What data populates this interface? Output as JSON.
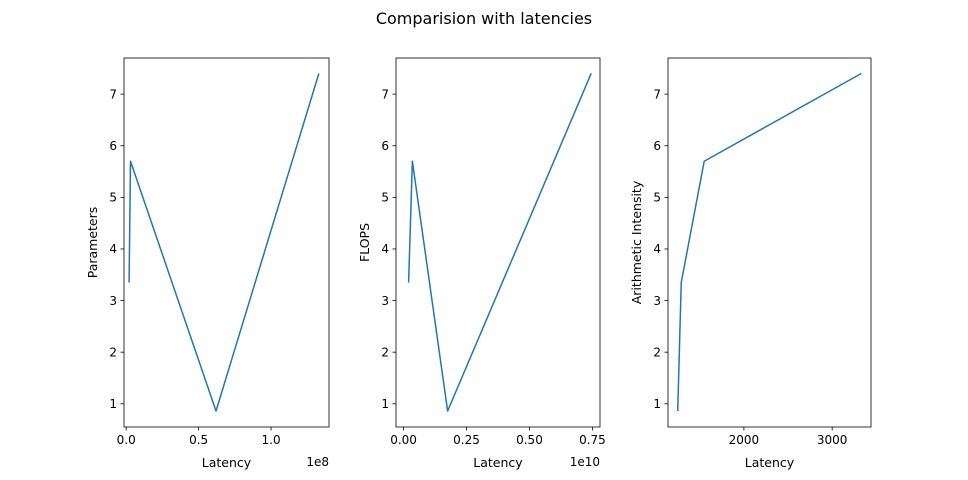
{
  "figure": {
    "title": "Comparision with latencies",
    "background": "#ffffff",
    "line_color": "#1f77b4"
  },
  "chart_data": [
    {
      "type": "line",
      "xlabel": "Latency",
      "ylabel": "Parameters",
      "x_offset_label": "1e8",
      "xlim": [
        -0.015,
        1.4
      ],
      "ylim": [
        0.55,
        7.7
      ],
      "xticks": [
        0.0,
        0.5,
        1.0
      ],
      "xtick_labels": [
        "0.0",
        "0.5",
        "1.0"
      ],
      "yticks": [
        1,
        2,
        3,
        4,
        5,
        6,
        7
      ],
      "ytick_labels": [
        "1",
        "2",
        "3",
        "4",
        "5",
        "6",
        "7"
      ],
      "x_units": "1e8",
      "series": [
        {
          "x": [
            0.02,
            0.03,
            0.62,
            1.33
          ],
          "y": [
            3.35,
            5.7,
            0.86,
            7.4
          ]
        }
      ]
    },
    {
      "type": "line",
      "xlabel": "Latency",
      "ylabel": "FLOPS",
      "x_offset_label": "1e10",
      "xlim": [
        -0.03,
        0.78
      ],
      "ylim": [
        0.55,
        7.7
      ],
      "xticks": [
        0.0,
        0.25,
        0.5,
        0.75
      ],
      "xtick_labels": [
        "0.00",
        "0.25",
        "0.50",
        "0.75"
      ],
      "yticks": [
        1,
        2,
        3,
        4,
        5,
        6,
        7
      ],
      "ytick_labels": [
        "1",
        "2",
        "3",
        "4",
        "5",
        "6",
        "7"
      ],
      "x_units": "1e10",
      "series": [
        {
          "x": [
            0.02,
            0.035,
            0.175,
            0.745
          ],
          "y": [
            3.35,
            5.7,
            0.86,
            7.4
          ]
        }
      ]
    },
    {
      "type": "line",
      "xlabel": "Latency",
      "ylabel": "Arithmetic Intensity",
      "x_offset_label": "",
      "xlim": [
        1140,
        3440
      ],
      "ylim": [
        0.55,
        7.7
      ],
      "xticks": [
        2000,
        3000
      ],
      "xtick_labels": [
        "2000",
        "3000"
      ],
      "yticks": [
        1,
        2,
        3,
        4,
        5,
        6,
        7
      ],
      "ytick_labels": [
        "1",
        "2",
        "3",
        "4",
        "5",
        "6",
        "7"
      ],
      "series": [
        {
          "x": [
            1250,
            1290,
            1550,
            3330
          ],
          "y": [
            0.86,
            3.35,
            5.7,
            7.4
          ]
        }
      ]
    }
  ]
}
